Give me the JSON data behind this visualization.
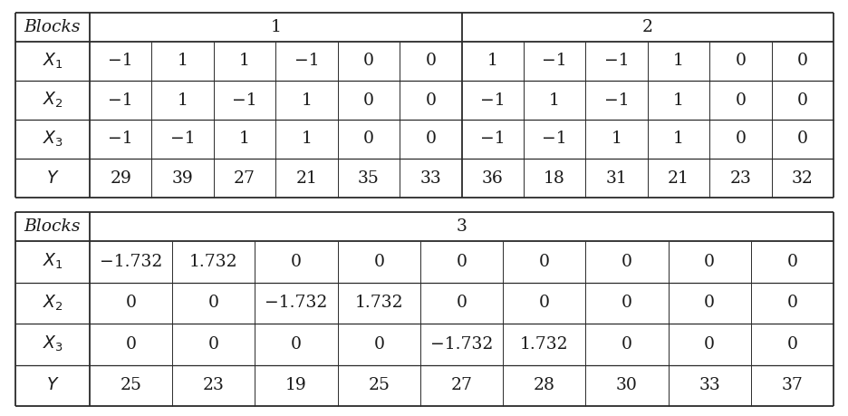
{
  "table1": {
    "rows": {
      "X1": {
        "block1": [
          "−1",
          "1",
          "1",
          "−1",
          "0",
          "0"
        ],
        "block2": [
          "1",
          "−1",
          "−1",
          "1",
          "0",
          "0"
        ]
      },
      "X2": {
        "block1": [
          "−1",
          "1",
          "−1",
          "1",
          "0",
          "0"
        ],
        "block2": [
          "−1",
          "1",
          "−1",
          "1",
          "0",
          "0"
        ]
      },
      "X3": {
        "block1": [
          "−1",
          "−1",
          "1",
          "1",
          "0",
          "0"
        ],
        "block2": [
          "−1",
          "−1",
          "1",
          "1",
          "0",
          "0"
        ]
      },
      "Y": {
        "block1": [
          "29",
          "39",
          "27",
          "21",
          "35",
          "33"
        ],
        "block2": [
          "36",
          "18",
          "31",
          "21",
          "23",
          "32"
        ]
      }
    }
  },
  "table2": {
    "rows": {
      "X1": [
        "−1.732",
        "1.732",
        "0",
        "0",
        "0",
        "0",
        "0",
        "0",
        "0"
      ],
      "X2": [
        "0",
        "0",
        "−1.732",
        "1.732",
        "0",
        "0",
        "0",
        "0",
        "0"
      ],
      "X3": [
        "0",
        "0",
        "0",
        "0",
        "−1.732",
        "1.732",
        "0",
        "0",
        "0"
      ],
      "Y": [
        "25",
        "23",
        "19",
        "25",
        "27",
        "28",
        "30",
        "33",
        "37"
      ]
    }
  },
  "bg_color": "#ffffff",
  "line_color": "#2a2a2a",
  "font_size": 13.5
}
